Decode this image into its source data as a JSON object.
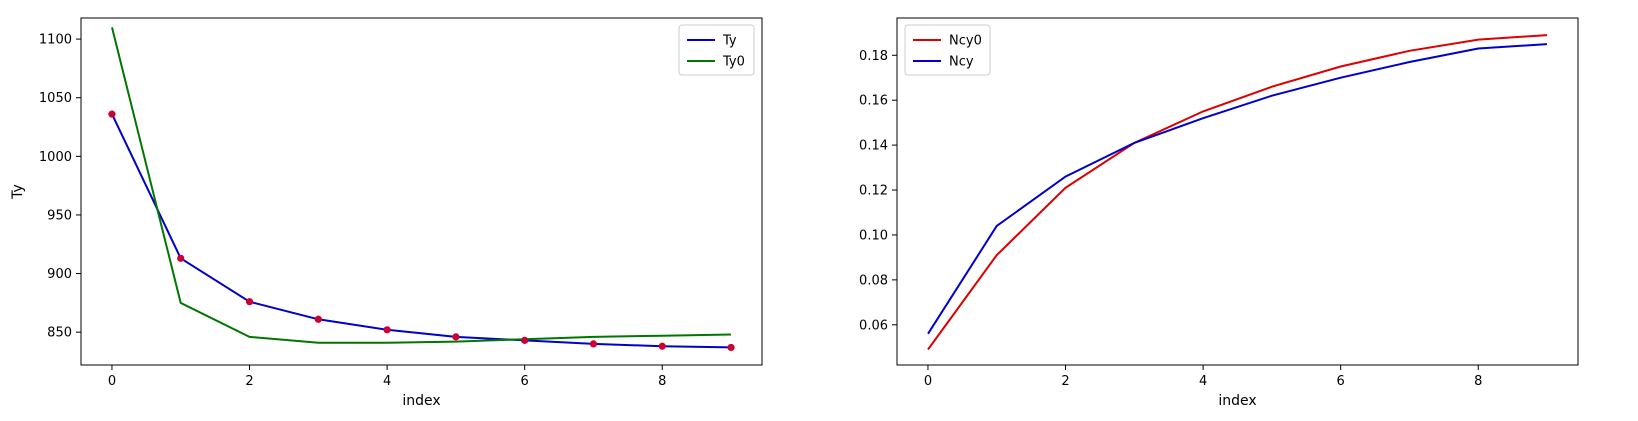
{
  "chart_data": [
    {
      "type": "line",
      "title": "",
      "xlabel": "index",
      "ylabel": "Ty",
      "x": [
        0,
        1,
        2,
        3,
        4,
        5,
        6,
        7,
        8,
        9
      ],
      "xlim": [
        -0.45,
        9.45
      ],
      "ylim": [
        822,
        1118
      ],
      "xticks": [
        0,
        2,
        4,
        6,
        8
      ],
      "yticks": [
        850,
        900,
        950,
        1000,
        1050,
        1100
      ],
      "legend_position": "upper right",
      "series": [
        {
          "name": "Ty",
          "color": "#0000cc",
          "values": [
            1036,
            913,
            876,
            861,
            852,
            846,
            843,
            840,
            838,
            837
          ]
        },
        {
          "name": "Ty0",
          "color": "#007700",
          "values": [
            1110,
            875,
            846,
            841,
            841,
            842,
            844,
            846,
            847,
            848
          ]
        }
      ],
      "scatter": {
        "color": "#cc0033",
        "values": [
          1036,
          913,
          876,
          861,
          852,
          846,
          843,
          840,
          838,
          837
        ]
      }
    },
    {
      "type": "line",
      "title": "",
      "xlabel": "index",
      "ylabel": "",
      "x": [
        0,
        1,
        2,
        3,
        4,
        5,
        6,
        7,
        8,
        9
      ],
      "xlim": [
        -0.45,
        9.45
      ],
      "ylim": [
        0.0421,
        0.1966
      ],
      "xticks": [
        0,
        2,
        4,
        6,
        8
      ],
      "yticks": [
        0.06,
        0.08,
        0.1,
        0.12,
        0.14,
        0.16,
        0.18
      ],
      "ytick_decimals": 2,
      "legend_position": "upper left",
      "series": [
        {
          "name": "Ncy0",
          "color": "#dd0000",
          "values": [
            0.049,
            0.091,
            0.121,
            0.141,
            0.155,
            0.166,
            0.175,
            0.182,
            0.187,
            0.189
          ]
        },
        {
          "name": "Ncy",
          "color": "#0000cc",
          "values": [
            0.056,
            0.104,
            0.126,
            0.141,
            0.152,
            0.162,
            0.17,
            0.177,
            0.183,
            0.185
          ]
        }
      ]
    }
  ]
}
